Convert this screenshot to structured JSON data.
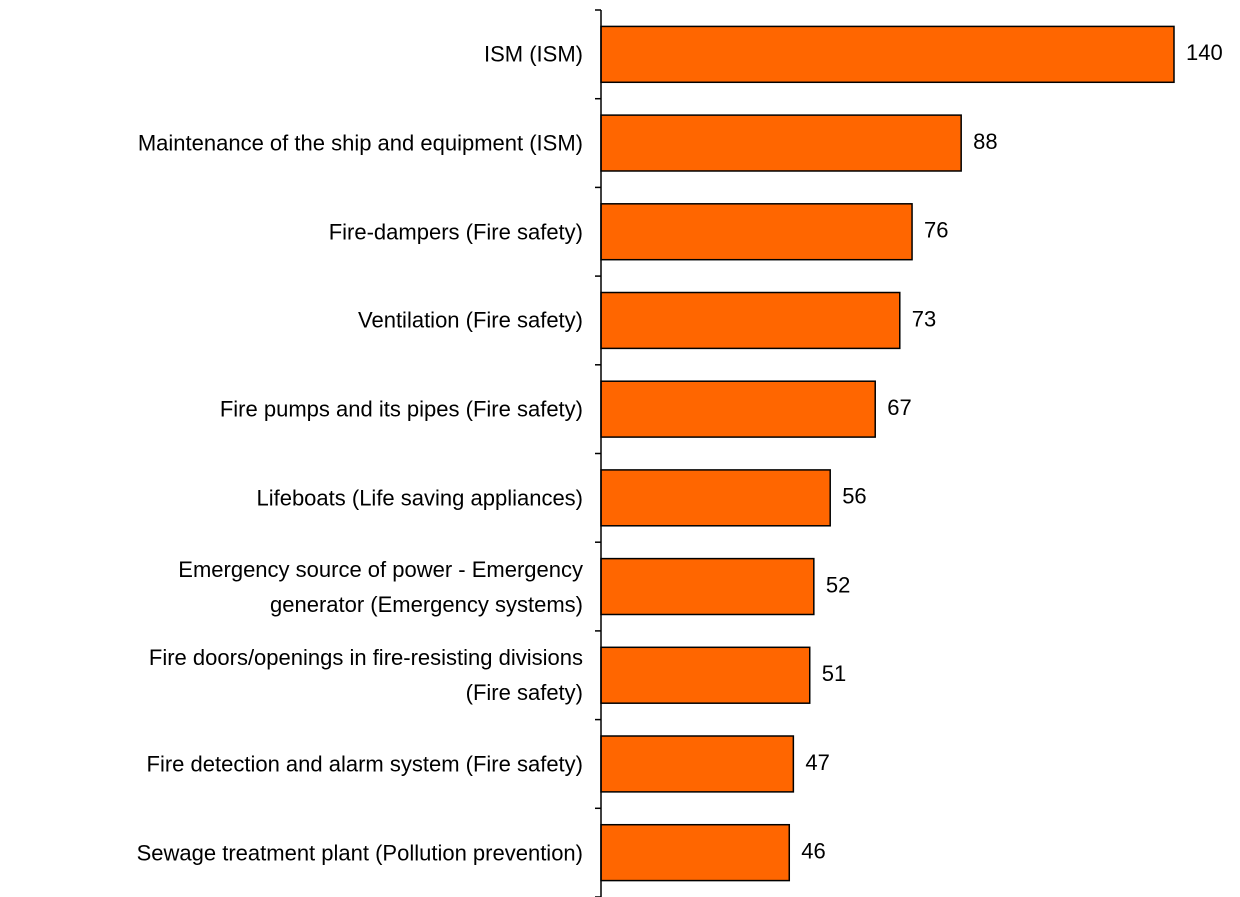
{
  "chart_data": {
    "type": "barh",
    "categories": [
      "ISM (ISM)",
      "Maintenance of the ship and equipment (ISM)",
      "Fire-dampers (Fire safety)",
      "Ventilation (Fire safety)",
      "Fire pumps and its pipes (Fire safety)",
      "Lifeboats (Life saving appliances)",
      "Emergency source of power - Emergency\ngenerator (Emergency systems)",
      "Fire doors/openings in fire-resisting divisions\n(Fire safety)",
      "Fire detection and alarm system (Fire safety)",
      "Sewage treatment plant (Pollution prevention)"
    ],
    "values": [
      140,
      88,
      76,
      73,
      67,
      56,
      52,
      51,
      47,
      46
    ],
    "color": "#ff6600"
  }
}
